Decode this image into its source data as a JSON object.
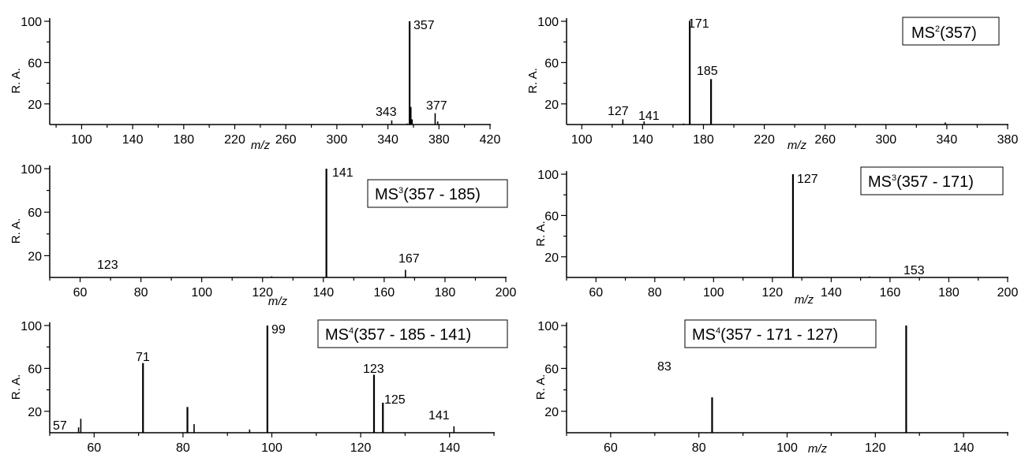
{
  "chart_data": [
    {
      "type": "bar",
      "panel": "top-left",
      "title": "",
      "xlabel": "m/z",
      "ylabel": "R. A.",
      "xlim": [
        75,
        420
      ],
      "ylim": [
        0,
        100
      ],
      "xticks": [
        100,
        140,
        180,
        220,
        260,
        300,
        340,
        380,
        420
      ],
      "yticks": [
        20,
        60,
        100
      ],
      "peaks": [
        {
          "mz": 343,
          "ra": 4
        },
        {
          "mz": 355,
          "ra": 1
        },
        {
          "mz": 357,
          "ra": 100
        },
        {
          "mz": 358,
          "ra": 17
        },
        {
          "mz": 359,
          "ra": 5
        },
        {
          "mz": 377,
          "ra": 11
        },
        {
          "mz": 379,
          "ra": 3
        }
      ],
      "peak_labels": [
        {
          "text": "357",
          "mz": 357,
          "ra": 100
        },
        {
          "text": "343",
          "mz": 343,
          "ra": 8
        },
        {
          "text": "377",
          "mz": 377,
          "ra": 11
        }
      ]
    },
    {
      "type": "bar",
      "panel": "top-right",
      "title": "MS2(357)",
      "ms_label": {
        "prefix": "MS",
        "sup": "2",
        "suffix": "(357)"
      },
      "xlabel": "m/z",
      "ylabel": "R. A.",
      "xlim": [
        90,
        380
      ],
      "ylim": [
        0,
        100
      ],
      "xticks": [
        100,
        140,
        180,
        220,
        260,
        300,
        340,
        380
      ],
      "yticks": [
        20,
        60,
        100
      ],
      "peaks": [
        {
          "mz": 127,
          "ra": 5
        },
        {
          "mz": 141,
          "ra": 3
        },
        {
          "mz": 167,
          "ra": 1
        },
        {
          "mz": 171,
          "ra": 100
        },
        {
          "mz": 185,
          "ra": 44
        },
        {
          "mz": 339,
          "ra": 2
        }
      ],
      "peak_labels": [
        {
          "text": "171",
          "mz": 171,
          "ra": 100
        },
        {
          "text": "185",
          "mz": 185,
          "ra": 44
        },
        {
          "text": "127",
          "mz": 127,
          "ra": 5
        },
        {
          "text": "141",
          "mz": 141,
          "ra": 3
        }
      ]
    },
    {
      "type": "bar",
      "panel": "middle-left",
      "title": "MS3(357 - 185)",
      "ms_label": {
        "prefix": "MS",
        "sup": "3",
        "suffix": "(357 - 185)"
      },
      "xlabel": "m/z",
      "ylabel": "R. A.",
      "xlim": [
        50,
        200
      ],
      "ylim": [
        0,
        100
      ],
      "xticks": [
        60,
        80,
        100,
        120,
        140,
        160,
        180,
        200
      ],
      "yticks": [
        20,
        60,
        100
      ],
      "peaks": [
        {
          "mz": 123,
          "ra": 1
        },
        {
          "mz": 141,
          "ra": 100
        },
        {
          "mz": 167,
          "ra": 7
        }
      ],
      "peak_labels": [
        {
          "text": "141",
          "mz": 141,
          "ra": 100
        },
        {
          "text": "123",
          "mz": 123,
          "ra": 2
        },
        {
          "text": "167",
          "mz": 167,
          "ra": 7
        }
      ]
    },
    {
      "type": "bar",
      "panel": "middle-right",
      "title": "MS3(357 - 171)",
      "ms_label": {
        "prefix": "MS",
        "sup": "3",
        "suffix": "(357 - 171)"
      },
      "xlabel": "m/z",
      "ylabel": "R. A.",
      "xlim": [
        50,
        200
      ],
      "ylim": [
        0,
        100
      ],
      "xticks": [
        60,
        80,
        100,
        120,
        140,
        160,
        180,
        200
      ],
      "yticks": [
        20,
        60,
        100
      ],
      "peaks": [
        {
          "mz": 127,
          "ra": 100
        },
        {
          "mz": 153,
          "ra": 1
        }
      ],
      "peak_labels": [
        {
          "text": "127",
          "mz": 127,
          "ra": 100
        },
        {
          "text": "153",
          "mz": 153,
          "ra": 1
        }
      ]
    },
    {
      "type": "bar",
      "panel": "bottom-left",
      "title": "MS4(357 - 185 - 141)",
      "ms_label": {
        "prefix": "MS",
        "sup": "4",
        "suffix": "(357 - 185 - 141)"
      },
      "xlabel": "",
      "ylabel": "R. A.",
      "xlim": [
        50,
        150
      ],
      "ylim": [
        0,
        100
      ],
      "xticks": [
        60,
        80,
        100,
        120,
        140
      ],
      "yticks": [
        20,
        60,
        100
      ],
      "peaks": [
        {
          "mz": 56.5,
          "ra": 5
        },
        {
          "mz": 57,
          "ra": 13
        },
        {
          "mz": 71,
          "ra": 65
        },
        {
          "mz": 81,
          "ra": 24
        },
        {
          "mz": 82.5,
          "ra": 8
        },
        {
          "mz": 95,
          "ra": 3
        },
        {
          "mz": 99,
          "ra": 100
        },
        {
          "mz": 123,
          "ra": 54
        },
        {
          "mz": 125,
          "ra": 28
        },
        {
          "mz": 141,
          "ra": 6
        }
      ],
      "peak_labels": [
        {
          "text": "57",
          "mz": 57,
          "ra": 13
        },
        {
          "text": "71",
          "mz": 71,
          "ra": 65
        },
        {
          "text": "99",
          "mz": 99,
          "ra": 100
        },
        {
          "text": "123",
          "mz": 123,
          "ra": 54
        },
        {
          "text": "125",
          "mz": 125,
          "ra": 28
        },
        {
          "text": "141",
          "mz": 141,
          "ra": 6
        }
      ]
    },
    {
      "type": "bar",
      "panel": "bottom-right",
      "title": "MS4(357 - 171 - 127)",
      "ms_label": {
        "prefix": "MS",
        "sup": "4",
        "suffix": "(357 - 171 - 127)"
      },
      "xlabel": "m/z",
      "ylabel": "R. A.",
      "xlim": [
        50,
        150
      ],
      "ylim": [
        0,
        100
      ],
      "xticks": [
        60,
        80,
        100,
        120,
        140
      ],
      "yticks": [
        20,
        60,
        100
      ],
      "peaks": [
        {
          "mz": 83,
          "ra": 33
        },
        {
          "mz": 127,
          "ra": 100
        }
      ],
      "peak_labels": [
        {
          "text": "83",
          "mz": 83,
          "ra": 33
        },
        {
          "text": "127",
          "mz": 127,
          "ra": 100
        }
      ]
    }
  ]
}
